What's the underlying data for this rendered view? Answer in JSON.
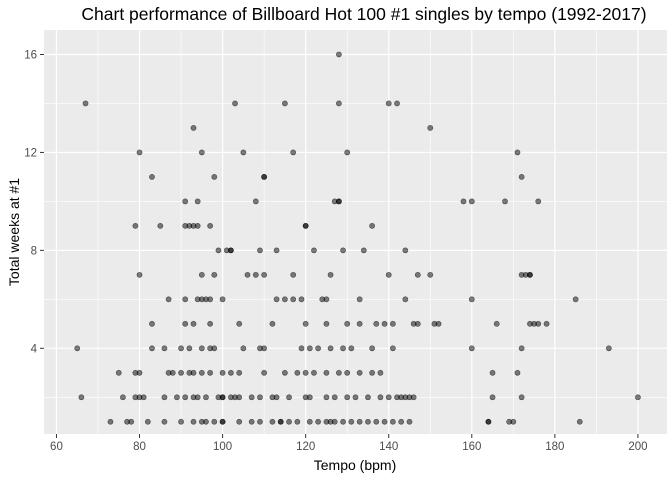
{
  "chart_data": {
    "type": "scatter",
    "title": "Chart performance of Billboard Hot 100 #1 singles by tempo (1992-2017)",
    "xlabel": "Tempo (bpm)",
    "ylabel": "Total weeks at #1",
    "xlim": [
      57,
      207
    ],
    "ylim": [
      0.5,
      17.0
    ],
    "x_ticks": [
      60,
      80,
      100,
      120,
      140,
      160,
      180,
      200
    ],
    "y_ticks": [
      4,
      8,
      12,
      16
    ],
    "grid": true,
    "legend": "none",
    "colors": {
      "panel": "#ebebeb",
      "grid": "#ffffff",
      "point": "#000000",
      "point_opacity": 0.5
    },
    "points": [
      [
        67,
        14
      ],
      [
        103,
        14
      ],
      [
        115,
        14
      ],
      [
        128,
        14
      ],
      [
        140,
        14
      ],
      [
        142,
        14
      ],
      [
        128,
        16
      ],
      [
        93,
        13
      ],
      [
        150,
        13
      ],
      [
        80,
        12
      ],
      [
        95,
        12
      ],
      [
        105,
        12
      ],
      [
        117,
        12
      ],
      [
        130,
        12
      ],
      [
        171,
        12
      ],
      [
        83,
        11
      ],
      [
        98,
        11
      ],
      [
        110,
        11
      ],
      [
        110,
        11
      ],
      [
        172,
        11
      ],
      [
        79,
        9
      ],
      [
        85,
        9
      ],
      [
        91,
        9
      ],
      [
        92,
        9
      ],
      [
        93,
        9
      ],
      [
        94,
        9
      ],
      [
        97,
        9
      ],
      [
        120,
        9
      ],
      [
        120,
        9
      ],
      [
        136,
        9
      ],
      [
        91,
        10
      ],
      [
        94,
        10
      ],
      [
        108,
        10
      ],
      [
        127,
        10
      ],
      [
        128,
        10
      ],
      [
        128,
        10
      ],
      [
        158,
        10
      ],
      [
        160,
        10
      ],
      [
        168,
        10
      ],
      [
        176,
        10
      ],
      [
        99,
        8
      ],
      [
        101,
        8
      ],
      [
        102,
        8
      ],
      [
        102,
        8
      ],
      [
        109,
        8
      ],
      [
        113,
        8
      ],
      [
        122,
        8
      ],
      [
        129,
        8
      ],
      [
        134,
        8
      ],
      [
        144,
        8
      ],
      [
        80,
        7
      ],
      [
        95,
        7
      ],
      [
        98,
        7
      ],
      [
        106,
        7
      ],
      [
        108,
        7
      ],
      [
        110,
        7
      ],
      [
        117,
        7
      ],
      [
        126,
        7
      ],
      [
        140,
        7
      ],
      [
        147,
        7
      ],
      [
        150,
        7
      ],
      [
        172,
        7
      ],
      [
        173,
        7
      ],
      [
        174,
        7
      ],
      [
        174,
        7
      ],
      [
        87,
        6
      ],
      [
        91,
        6
      ],
      [
        94,
        6
      ],
      [
        95,
        6
      ],
      [
        96,
        6
      ],
      [
        97,
        6
      ],
      [
        100,
        6
      ],
      [
        113,
        6
      ],
      [
        115,
        6
      ],
      [
        117,
        6
      ],
      [
        119,
        6
      ],
      [
        124,
        6
      ],
      [
        125,
        6
      ],
      [
        133,
        6
      ],
      [
        144,
        6
      ],
      [
        160,
        6
      ],
      [
        185,
        6
      ],
      [
        83,
        5
      ],
      [
        91,
        5
      ],
      [
        93,
        5
      ],
      [
        97,
        5
      ],
      [
        104,
        5
      ],
      [
        112,
        5
      ],
      [
        120,
        5
      ],
      [
        125,
        5
      ],
      [
        130,
        5
      ],
      [
        133,
        5
      ],
      [
        137,
        5
      ],
      [
        139,
        5
      ],
      [
        141,
        5
      ],
      [
        146,
        5
      ],
      [
        147,
        5
      ],
      [
        151,
        5
      ],
      [
        152,
        5
      ],
      [
        166,
        5
      ],
      [
        174,
        5
      ],
      [
        175,
        5
      ],
      [
        176,
        5
      ],
      [
        178,
        5
      ],
      [
        65,
        4
      ],
      [
        83,
        4
      ],
      [
        86,
        4
      ],
      [
        90,
        4
      ],
      [
        92,
        4
      ],
      [
        95,
        4
      ],
      [
        97,
        4
      ],
      [
        98,
        4
      ],
      [
        105,
        4
      ],
      [
        109,
        4
      ],
      [
        110,
        4
      ],
      [
        119,
        4
      ],
      [
        121,
        4
      ],
      [
        123,
        4
      ],
      [
        126,
        4
      ],
      [
        129,
        4
      ],
      [
        131,
        4
      ],
      [
        136,
        4
      ],
      [
        141,
        4
      ],
      [
        160,
        4
      ],
      [
        172,
        4
      ],
      [
        193,
        4
      ],
      [
        75,
        3
      ],
      [
        79,
        3
      ],
      [
        80,
        3
      ],
      [
        87,
        3
      ],
      [
        88,
        3
      ],
      [
        90,
        3
      ],
      [
        92,
        3
      ],
      [
        93,
        3
      ],
      [
        95,
        3
      ],
      [
        97,
        3
      ],
      [
        100,
        3
      ],
      [
        102,
        3
      ],
      [
        104,
        3
      ],
      [
        110,
        3
      ],
      [
        115,
        3
      ],
      [
        118,
        3
      ],
      [
        120,
        3
      ],
      [
        122,
        3
      ],
      [
        125,
        3
      ],
      [
        128,
        3
      ],
      [
        130,
        3
      ],
      [
        133,
        3
      ],
      [
        136,
        3
      ],
      [
        138,
        3
      ],
      [
        165,
        3
      ],
      [
        171,
        3
      ],
      [
        66,
        2
      ],
      [
        76,
        2
      ],
      [
        79,
        2
      ],
      [
        80,
        2
      ],
      [
        81,
        2
      ],
      [
        86,
        2
      ],
      [
        89,
        2
      ],
      [
        91,
        2
      ],
      [
        93,
        2
      ],
      [
        94,
        2
      ],
      [
        96,
        2
      ],
      [
        99,
        2
      ],
      [
        100,
        2
      ],
      [
        100,
        2
      ],
      [
        102,
        2
      ],
      [
        103,
        2
      ],
      [
        104,
        2
      ],
      [
        107,
        2
      ],
      [
        109,
        2
      ],
      [
        112,
        2
      ],
      [
        113,
        2
      ],
      [
        116,
        2
      ],
      [
        120,
        2
      ],
      [
        121,
        2
      ],
      [
        125,
        2
      ],
      [
        127,
        2
      ],
      [
        130,
        2
      ],
      [
        132,
        2
      ],
      [
        135,
        2
      ],
      [
        138,
        2
      ],
      [
        140,
        2
      ],
      [
        142,
        2
      ],
      [
        143,
        2
      ],
      [
        144,
        2
      ],
      [
        145,
        2
      ],
      [
        146,
        2
      ],
      [
        165,
        2
      ],
      [
        172,
        2
      ],
      [
        200,
        2
      ],
      [
        73,
        1
      ],
      [
        77,
        1
      ],
      [
        78,
        1
      ],
      [
        82,
        1
      ],
      [
        86,
        1
      ],
      [
        90,
        1
      ],
      [
        93,
        1
      ],
      [
        95,
        1
      ],
      [
        96,
        1
      ],
      [
        98,
        1
      ],
      [
        100,
        1
      ],
      [
        100,
        1
      ],
      [
        104,
        1
      ],
      [
        107,
        1
      ],
      [
        109,
        1
      ],
      [
        112,
        1
      ],
      [
        114,
        1
      ],
      [
        114,
        1
      ],
      [
        116,
        1
      ],
      [
        118,
        1
      ],
      [
        121,
        1
      ],
      [
        123,
        1
      ],
      [
        125,
        1
      ],
      [
        126,
        1
      ],
      [
        127,
        1
      ],
      [
        129,
        1
      ],
      [
        131,
        1
      ],
      [
        133,
        1
      ],
      [
        135,
        1
      ],
      [
        137,
        1
      ],
      [
        139,
        1
      ],
      [
        141,
        1
      ],
      [
        143,
        1
      ],
      [
        145,
        1
      ],
      [
        164,
        1
      ],
      [
        164,
        1
      ],
      [
        169,
        1
      ],
      [
        170,
        1
      ],
      [
        186,
        1
      ]
    ]
  }
}
